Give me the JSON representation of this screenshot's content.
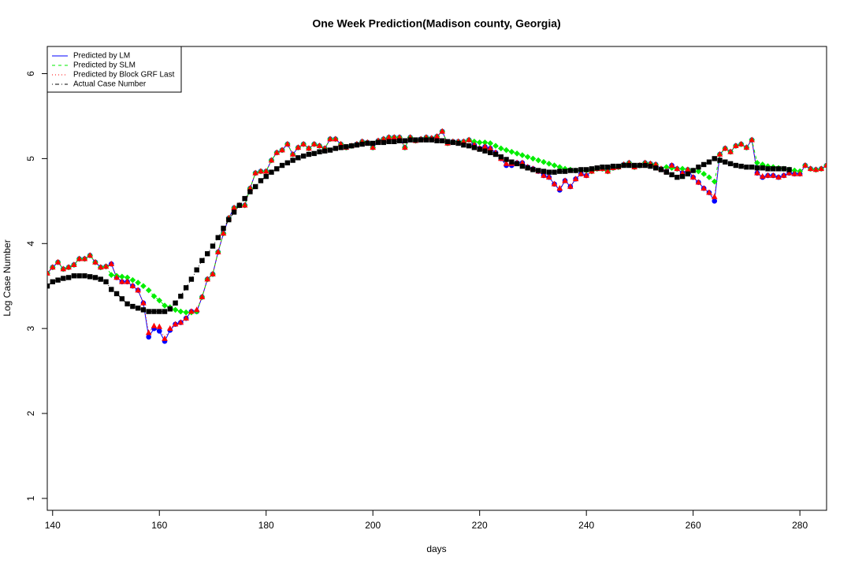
{
  "chart_data": {
    "type": "line",
    "title": "One Week Prediction(Madison county, Georgia)",
    "x_label": "days",
    "y_label": "Log Case Number",
    "xlim": [
      139,
      285
    ],
    "ylim": [
      0.86,
      6.32
    ],
    "xticks": [
      140,
      160,
      180,
      200,
      220,
      240,
      260,
      280
    ],
    "yticks": [
      1,
      2,
      3,
      4,
      5,
      6
    ],
    "legend": "topleft",
    "x": [
      139,
      140,
      141,
      142,
      143,
      144,
      145,
      146,
      147,
      148,
      149,
      150,
      151,
      152,
      153,
      154,
      155,
      156,
      157,
      158,
      159,
      160,
      161,
      162,
      163,
      164,
      165,
      166,
      167,
      168,
      169,
      170,
      171,
      172,
      173,
      174,
      175,
      176,
      177,
      178,
      179,
      180,
      181,
      182,
      183,
      184,
      185,
      186,
      187,
      188,
      189,
      190,
      191,
      192,
      193,
      194,
      195,
      196,
      197,
      198,
      199,
      200,
      201,
      202,
      203,
      204,
      205,
      206,
      207,
      208,
      209,
      210,
      211,
      212,
      213,
      214,
      215,
      216,
      217,
      218,
      219,
      220,
      221,
      222,
      223,
      224,
      225,
      226,
      227,
      228,
      229,
      230,
      231,
      232,
      233,
      234,
      235,
      236,
      237,
      238,
      239,
      240,
      241,
      242,
      243,
      244,
      245,
      246,
      247,
      248,
      249,
      250,
      251,
      252,
      253,
      254,
      255,
      256,
      257,
      258,
      259,
      260,
      261,
      262,
      263,
      264,
      265,
      266,
      267,
      268,
      269,
      270,
      271,
      272,
      273,
      274,
      275,
      276,
      277,
      278,
      279,
      280,
      281,
      282,
      283,
      284,
      285
    ],
    "series": [
      {
        "name": "Predicted by LM",
        "color": "#0000ff",
        "line_style": "solid",
        "marker": "circle",
        "values": [
          3.65,
          3.72,
          3.78,
          3.7,
          3.72,
          3.75,
          3.82,
          3.82,
          3.86,
          3.78,
          3.72,
          3.73,
          3.76,
          3.6,
          3.55,
          3.55,
          3.5,
          3.45,
          3.3,
          2.9,
          3.0,
          2.97,
          2.85,
          2.98,
          3.05,
          3.07,
          3.12,
          3.2,
          3.2,
          3.37,
          3.58,
          3.64,
          3.9,
          4.12,
          4.3,
          4.42,
          4.45,
          4.45,
          4.65,
          4.83,
          4.85,
          4.85,
          4.98,
          5.07,
          5.1,
          5.17,
          5.05,
          5.13,
          5.17,
          5.12,
          5.17,
          5.15,
          5.12,
          5.23,
          5.23,
          5.17,
          5.13,
          5.15,
          5.17,
          5.2,
          5.19,
          5.13,
          5.21,
          5.23,
          5.25,
          5.25,
          5.25,
          5.13,
          5.25,
          5.21,
          5.23,
          5.25,
          5.24,
          5.26,
          5.32,
          5.18,
          5.2,
          5.2,
          5.2,
          5.22,
          5.16,
          5.12,
          5.14,
          5.12,
          5.07,
          5.0,
          4.92,
          4.92,
          4.95,
          4.95,
          4.9,
          4.88,
          4.85,
          4.8,
          4.78,
          4.7,
          4.63,
          4.74,
          4.67,
          4.76,
          4.82,
          4.8,
          4.85,
          4.88,
          4.88,
          4.85,
          4.89,
          4.9,
          4.93,
          4.95,
          4.9,
          4.92,
          4.95,
          4.94,
          4.93,
          4.88,
          4.85,
          4.92,
          4.88,
          4.83,
          4.87,
          4.78,
          4.72,
          4.65,
          4.6,
          4.5,
          5.05,
          5.12,
          5.08,
          5.15,
          5.17,
          5.13,
          5.22,
          4.83,
          4.78,
          4.8,
          4.8,
          4.78,
          4.8,
          4.83,
          4.82,
          4.82,
          4.92,
          4.88,
          4.87,
          4.88,
          4.92
        ]
      },
      {
        "name": "Predicted by SLM",
        "color": "#00ee00",
        "line_style": "dashed",
        "marker": "diamond",
        "values": [
          3.65,
          3.72,
          3.78,
          3.7,
          3.72,
          3.75,
          3.82,
          3.82,
          3.86,
          3.78,
          3.72,
          3.73,
          3.63,
          3.62,
          3.61,
          3.6,
          3.57,
          3.54,
          3.5,
          3.45,
          3.38,
          3.33,
          3.27,
          3.25,
          3.22,
          3.2,
          3.19,
          3.19,
          3.2,
          3.37,
          3.58,
          3.64,
          3.9,
          4.12,
          4.3,
          4.42,
          4.45,
          4.45,
          4.65,
          4.83,
          4.85,
          4.85,
          4.98,
          5.07,
          5.1,
          5.17,
          5.05,
          5.13,
          5.17,
          5.12,
          5.17,
          5.15,
          5.12,
          5.23,
          5.23,
          5.17,
          5.13,
          5.15,
          5.17,
          5.2,
          5.19,
          5.13,
          5.21,
          5.23,
          5.25,
          5.25,
          5.25,
          5.13,
          5.25,
          5.21,
          5.23,
          5.25,
          5.24,
          5.26,
          5.32,
          5.18,
          5.2,
          5.2,
          5.2,
          5.22,
          5.2,
          5.19,
          5.19,
          5.18,
          5.15,
          5.12,
          5.1,
          5.08,
          5.06,
          5.04,
          5.02,
          5.0,
          4.98,
          4.96,
          4.94,
          4.92,
          4.9,
          4.88,
          4.87,
          4.86,
          4.86,
          4.86,
          4.85,
          4.88,
          4.88,
          4.85,
          4.89,
          4.9,
          4.93,
          4.95,
          4.9,
          4.92,
          4.95,
          4.94,
          4.93,
          4.88,
          4.9,
          4.89,
          4.88,
          4.88,
          4.87,
          4.86,
          4.85,
          4.82,
          4.78,
          4.73,
          5.05,
          5.12,
          5.08,
          5.15,
          5.17,
          5.13,
          5.22,
          4.95,
          4.93,
          4.91,
          4.9,
          4.89,
          4.88,
          4.87,
          4.86,
          4.85,
          4.92,
          4.88,
          4.87,
          4.88,
          4.92
        ]
      },
      {
        "name": "Predicted by Block GRF Last",
        "color": "#ff0000",
        "line_style": "dotted",
        "marker": "triangle",
        "values": [
          3.65,
          3.72,
          3.78,
          3.7,
          3.72,
          3.75,
          3.82,
          3.82,
          3.86,
          3.78,
          3.72,
          3.73,
          3.76,
          3.6,
          3.55,
          3.55,
          3.5,
          3.45,
          3.3,
          2.95,
          3.03,
          3.02,
          2.88,
          3.0,
          3.05,
          3.07,
          3.12,
          3.2,
          3.22,
          3.37,
          3.58,
          3.64,
          3.9,
          4.12,
          4.3,
          4.42,
          4.45,
          4.45,
          4.65,
          4.83,
          4.85,
          4.85,
          4.98,
          5.07,
          5.1,
          5.17,
          5.05,
          5.13,
          5.17,
          5.12,
          5.17,
          5.15,
          5.12,
          5.23,
          5.23,
          5.17,
          5.13,
          5.15,
          5.17,
          5.2,
          5.19,
          5.13,
          5.21,
          5.23,
          5.25,
          5.25,
          5.25,
          5.13,
          5.25,
          5.21,
          5.23,
          5.25,
          5.24,
          5.26,
          5.32,
          5.18,
          5.2,
          5.2,
          5.2,
          5.22,
          5.16,
          5.12,
          5.14,
          5.12,
          5.07,
          5.0,
          4.94,
          4.94,
          4.95,
          4.95,
          4.9,
          4.88,
          4.85,
          4.8,
          4.78,
          4.7,
          4.65,
          4.74,
          4.67,
          4.76,
          4.82,
          4.8,
          4.85,
          4.88,
          4.88,
          4.85,
          4.89,
          4.9,
          4.93,
          4.95,
          4.9,
          4.92,
          4.95,
          4.94,
          4.93,
          4.88,
          4.85,
          4.92,
          4.88,
          4.83,
          4.87,
          4.78,
          4.72,
          4.65,
          4.6,
          4.55,
          5.05,
          5.12,
          5.08,
          5.15,
          5.17,
          5.13,
          5.22,
          4.83,
          4.79,
          4.8,
          4.8,
          4.78,
          4.8,
          4.83,
          4.82,
          4.82,
          4.92,
          4.88,
          4.87,
          4.88,
          4.92
        ]
      },
      {
        "name": "Actual Case Number",
        "color": "#000000",
        "line_style": "dotdash",
        "marker": "square",
        "values": [
          3.5,
          3.55,
          3.57,
          3.59,
          3.6,
          3.62,
          3.62,
          3.62,
          3.61,
          3.6,
          3.58,
          3.55,
          3.46,
          3.41,
          3.35,
          3.29,
          3.26,
          3.24,
          3.22,
          3.2,
          3.2,
          3.2,
          3.2,
          3.23,
          3.3,
          3.38,
          3.48,
          3.58,
          3.69,
          3.8,
          3.88,
          3.97,
          4.07,
          4.18,
          4.28,
          4.37,
          4.45,
          4.53,
          4.61,
          4.67,
          4.74,
          4.79,
          4.84,
          4.88,
          4.92,
          4.95,
          4.98,
          5.01,
          5.03,
          5.05,
          5.06,
          5.08,
          5.09,
          5.1,
          5.12,
          5.13,
          5.14,
          5.15,
          5.16,
          5.17,
          5.18,
          5.18,
          5.19,
          5.19,
          5.2,
          5.2,
          5.21,
          5.21,
          5.22,
          5.22,
          5.22,
          5.22,
          5.22,
          5.21,
          5.21,
          5.2,
          5.19,
          5.18,
          5.16,
          5.15,
          5.13,
          5.11,
          5.09,
          5.07,
          5.05,
          5.02,
          4.99,
          4.96,
          4.94,
          4.91,
          4.89,
          4.87,
          4.86,
          4.85,
          4.84,
          4.84,
          4.85,
          4.85,
          4.86,
          4.86,
          4.87,
          4.87,
          4.88,
          4.89,
          4.9,
          4.9,
          4.91,
          4.91,
          4.92,
          4.92,
          4.92,
          4.92,
          4.92,
          4.91,
          4.89,
          4.87,
          4.84,
          4.81,
          4.78,
          4.79,
          4.82,
          4.86,
          4.9,
          4.93,
          4.96,
          5.0,
          4.98,
          4.96,
          4.94,
          4.92,
          4.91,
          4.9,
          4.9,
          4.89,
          4.89,
          4.88,
          4.88,
          4.88,
          4.88,
          4.87,
          null,
          null,
          null,
          null,
          null,
          null,
          null
        ]
      }
    ]
  }
}
